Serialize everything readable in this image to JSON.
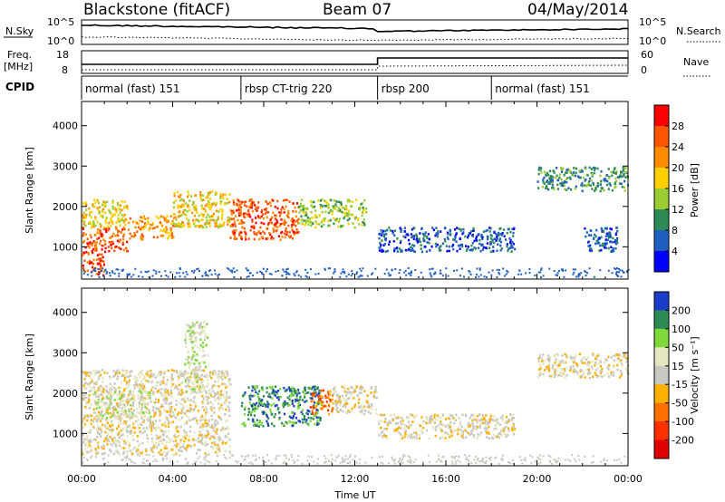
{
  "header": {
    "station": "Blackstone (fitACF)",
    "beam": "Beam 07",
    "date": "04/May/2014"
  },
  "strip_labels": {
    "nsky": "N.Sky",
    "nsky_top": "10^5",
    "nsky_bottom": "10^0",
    "nsearch": "N.Search",
    "nsearch_top": "10^5",
    "nsearch_bottom": "10^0",
    "freq_line1": "Freq.",
    "freq_line2": "[MHz]",
    "freq_top": "18",
    "freq_bottom": "8",
    "nave": "Nave",
    "nave_top": "60",
    "nave_bottom": "0",
    "cpid": "CPID"
  },
  "cpid_segments": [
    {
      "label": "normal (fast) 151",
      "start_h": 0.0,
      "end_h": 7.0
    },
    {
      "label": "rbsp CT-trig 220",
      "start_h": 7.0,
      "end_h": 13.0
    },
    {
      "label": "rbsp 200",
      "start_h": 13.0,
      "end_h": 18.0
    },
    {
      "label": "normal (fast) 151",
      "start_h": 18.0,
      "end_h": 24.0
    }
  ],
  "chart_data": [
    {
      "type": "heatmap",
      "name": "power",
      "ylabel": "Slant Range [km]",
      "yticks": [
        1000,
        2000,
        3000,
        4000
      ],
      "ylim": [
        200,
        4600
      ],
      "xlim_hours": [
        0,
        24
      ],
      "colorbar": {
        "label": "Power [dB]",
        "ticks": [
          "28",
          "24",
          "20",
          "16",
          "12",
          "8",
          "4"
        ],
        "colors": [
          "#ff0000",
          "#ff5500",
          "#ff8c00",
          "#ffd000",
          "#9acd32",
          "#2e8b57",
          "#1e5fbf",
          "#0000ff"
        ]
      },
      "regions": [
        {
          "x0": 0.0,
          "x1": 1.0,
          "y0": 300,
          "y1": 900,
          "level": 6
        },
        {
          "x0": 0.0,
          "x1": 2.0,
          "y0": 900,
          "y1": 1500,
          "level": 6
        },
        {
          "x0": 0.0,
          "x1": 2.0,
          "y0": 1500,
          "y1": 2200,
          "level": 4
        },
        {
          "x0": 2.0,
          "x1": 4.0,
          "y0": 1200,
          "y1": 1800,
          "level": 5
        },
        {
          "x0": 4.0,
          "x1": 6.5,
          "y0": 1500,
          "y1": 2400,
          "level": 4
        },
        {
          "x0": 6.5,
          "x1": 9.5,
          "y0": 1200,
          "y1": 2200,
          "level": 6
        },
        {
          "x0": 9.5,
          "x1": 12.5,
          "y0": 1500,
          "y1": 2200,
          "level": 3
        },
        {
          "x0": 13.0,
          "x1": 19.0,
          "y0": 900,
          "y1": 1500,
          "level": 1
        },
        {
          "x0": 20.0,
          "x1": 24.0,
          "y0": 2400,
          "y1": 3000,
          "level": 2
        },
        {
          "x0": 22.0,
          "x1": 23.5,
          "y0": 900,
          "y1": 1500,
          "level": 1
        }
      ]
    },
    {
      "type": "heatmap",
      "name": "velocity",
      "ylabel": "Slant Range [km]",
      "xlabel": "Time UT",
      "xticks": [
        "00:00",
        "04:00",
        "08:00",
        "12:00",
        "16:00",
        "20:00",
        "00:00"
      ],
      "yticks": [
        1000,
        2000,
        3000,
        4000
      ],
      "ylim": [
        200,
        4600
      ],
      "xlim_hours": [
        0,
        24
      ],
      "colorbar": {
        "label": "Velocity [m s⁻¹]",
        "ticks": [
          "200",
          "100",
          "50",
          "15",
          "-15",
          "-50",
          "-100",
          "-200"
        ],
        "colors": [
          "#1a3cc8",
          "#2e8b57",
          "#7fd93a",
          "#e6e6c0",
          "#c8c8c0",
          "#ffb000",
          "#ff7000",
          "#ff3000",
          "#e00000"
        ]
      },
      "regions": [
        {
          "x0": 0.0,
          "x1": 6.5,
          "y0": 500,
          "y1": 2600,
          "level": 4
        },
        {
          "x0": 0.5,
          "x1": 3.0,
          "y0": 1400,
          "y1": 2100,
          "level": 5
        },
        {
          "x0": 4.5,
          "x1": 5.5,
          "y0": 2000,
          "y1": 3800,
          "level": 5
        },
        {
          "x0": 7.0,
          "x1": 10.5,
          "y0": 1200,
          "y1": 2200,
          "level": 7
        },
        {
          "x0": 10.0,
          "x1": 11.0,
          "y0": 1500,
          "y1": 2100,
          "level": 2
        },
        {
          "x0": 11.0,
          "x1": 13.0,
          "y0": 1500,
          "y1": 2200,
          "level": 4
        },
        {
          "x0": 13.0,
          "x1": 19.0,
          "y0": 900,
          "y1": 1500,
          "level": 4
        },
        {
          "x0": 20.0,
          "x1": 24.0,
          "y0": 2400,
          "y1": 3000,
          "level": 4
        }
      ]
    }
  ]
}
